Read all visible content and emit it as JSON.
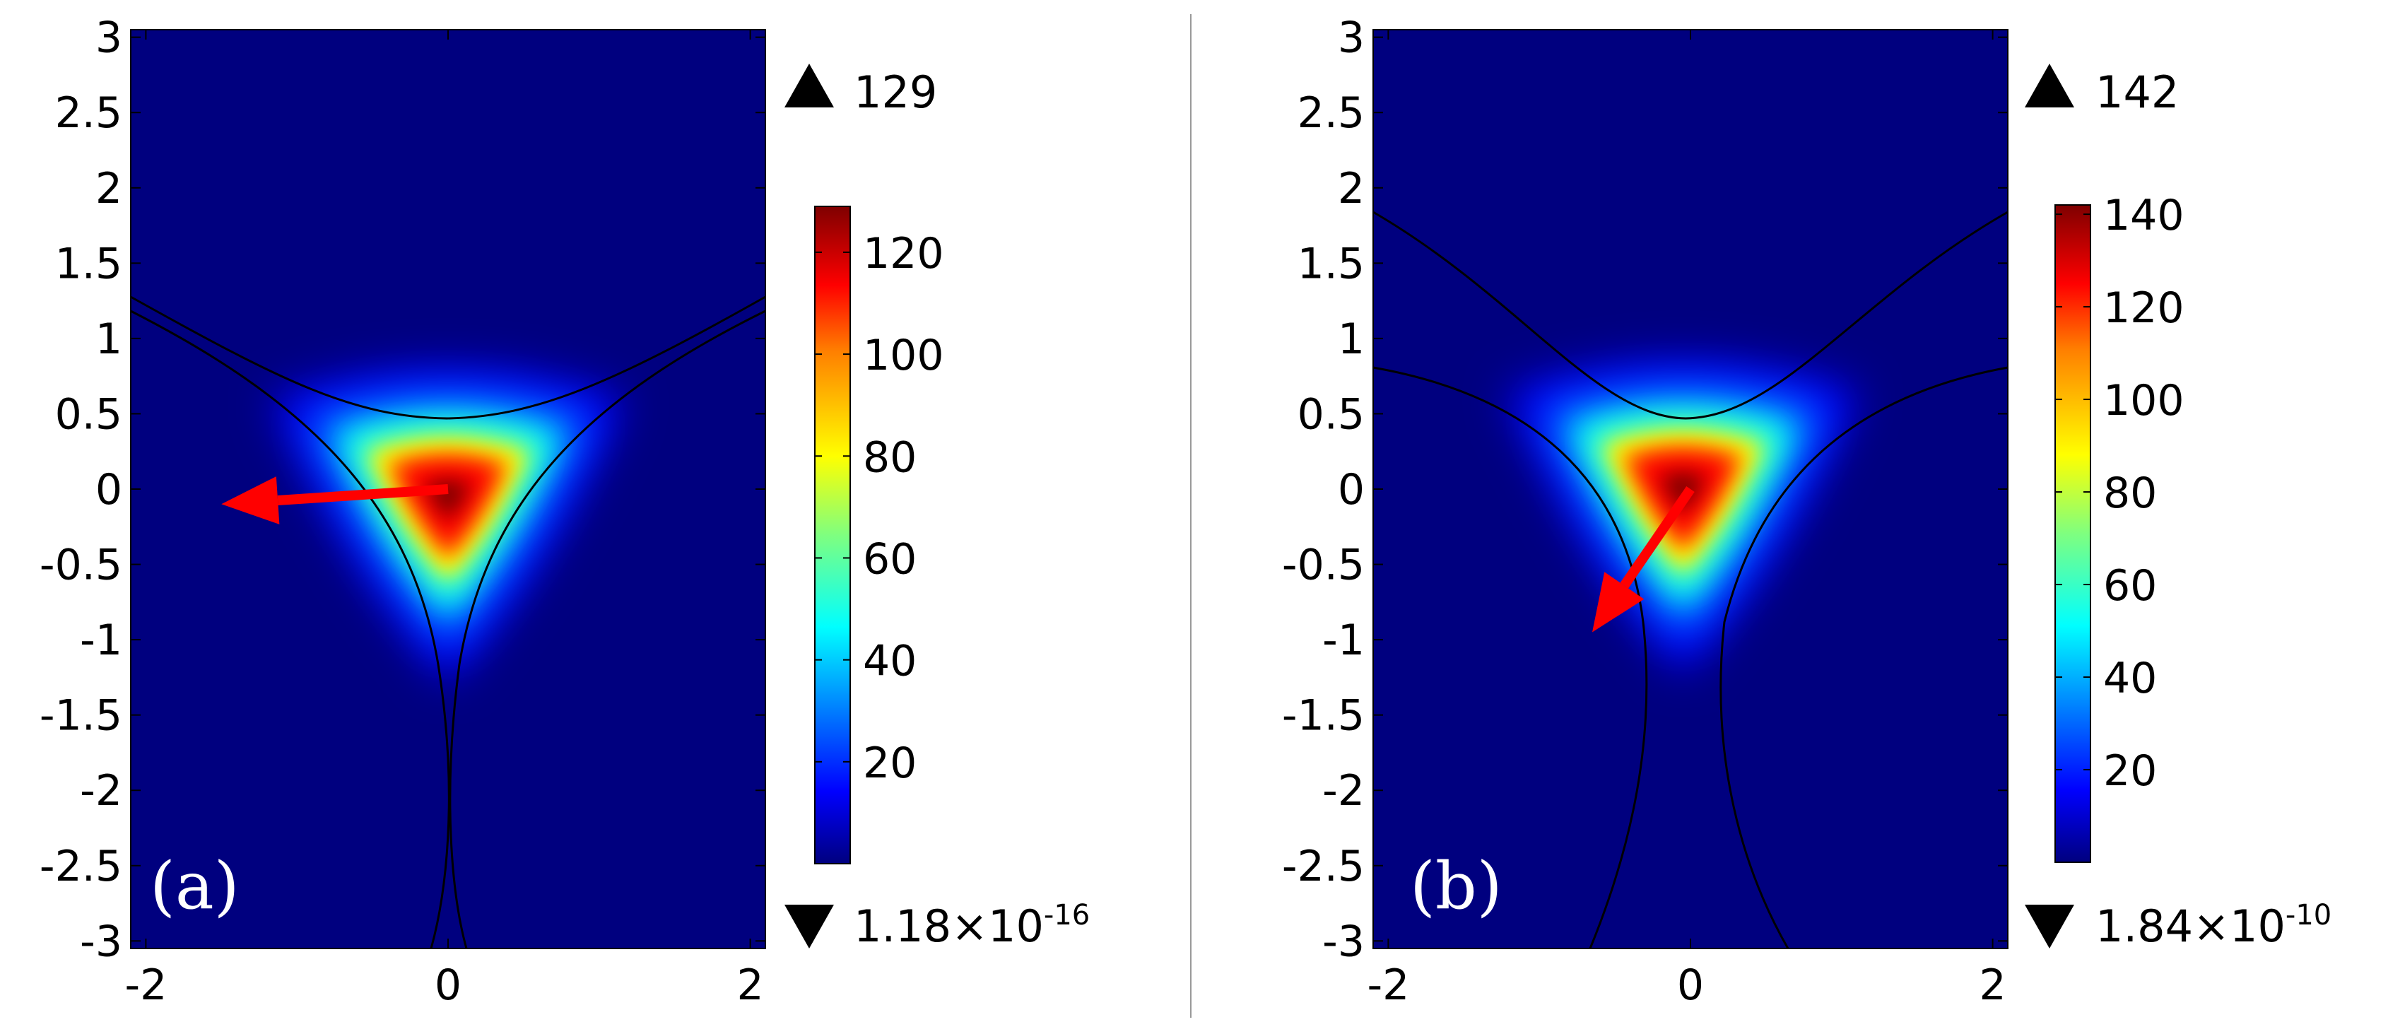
{
  "chart_data": [
    {
      "type": "heatmap",
      "panel_label": "(a)",
      "xlim": [
        -2.1,
        2.1
      ],
      "ylim": [
        -3.05,
        3.05
      ],
      "xticks": [
        "-2",
        "0",
        "2"
      ],
      "yticks": [
        "3",
        "2.5",
        "2",
        "1.5",
        "1",
        "0.5",
        "0",
        "-0.5",
        "-1",
        "-1.5",
        "-2",
        "-2.5",
        "-3"
      ],
      "colorbar": {
        "min": 0,
        "max": 129,
        "ticks": [
          "20",
          "40",
          "60",
          "80",
          "100",
          "120"
        ]
      },
      "max_value": "129",
      "min_value": "1.18×10",
      "min_exponent": "-16",
      "peak": {
        "x": 0,
        "y": -0.05,
        "value": 129
      },
      "arrow": {
        "from": [
          0,
          0
        ],
        "to": [
          -1.5,
          -0.1
        ],
        "color": "#ff0000"
      },
      "colormap": [
        "#00007f",
        "#0000ff",
        "#007fff",
        "#00ffff",
        "#7fff7f",
        "#ffff00",
        "#ff7f00",
        "#ff0000",
        "#7f0000"
      ]
    },
    {
      "type": "heatmap",
      "panel_label": "(b)",
      "xlim": [
        -2.1,
        2.1
      ],
      "ylim": [
        -3.05,
        3.05
      ],
      "xticks": [
        "-2",
        "0",
        "2"
      ],
      "yticks": [
        "3",
        "2.5",
        "2",
        "1.5",
        "1",
        "0.5",
        "0",
        "-0.5",
        "-1",
        "-1.5",
        "-2",
        "-2.5",
        "-3"
      ],
      "colorbar": {
        "min": 0,
        "max": 142,
        "ticks": [
          "20",
          "40",
          "60",
          "80",
          "100",
          "120",
          "140"
        ]
      },
      "max_value": "142",
      "min_value": "1.84×10",
      "min_exponent": "-10",
      "peak": {
        "x": -0.05,
        "y": 0,
        "value": 142
      },
      "arrow": {
        "from": [
          0,
          0
        ],
        "to": [
          -0.65,
          -0.95
        ],
        "color": "#ff0000"
      },
      "colormap": [
        "#00007f",
        "#0000ff",
        "#007fff",
        "#00ffff",
        "#7fff7f",
        "#ffff00",
        "#ff7f00",
        "#ff0000",
        "#7f0000"
      ]
    }
  ]
}
